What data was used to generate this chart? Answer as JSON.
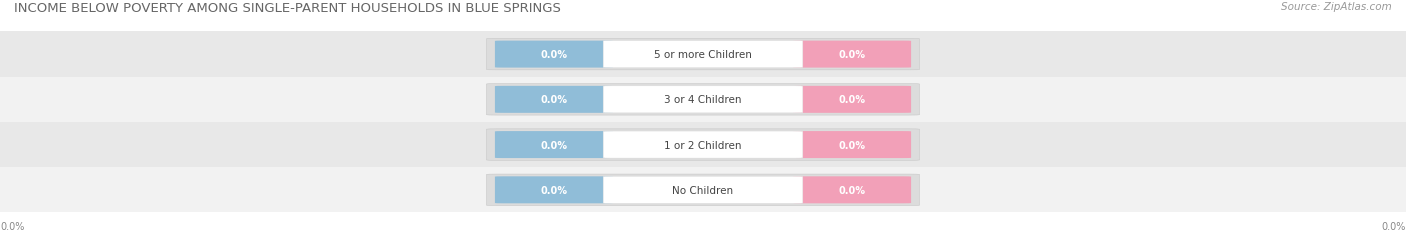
{
  "title": "INCOME BELOW POVERTY AMONG SINGLE-PARENT HOUSEHOLDS IN BLUE SPRINGS",
  "source": "Source: ZipAtlas.com",
  "categories": [
    "No Children",
    "1 or 2 Children",
    "3 or 4 Children",
    "5 or more Children"
  ],
  "father_values": [
    0.0,
    0.0,
    0.0,
    0.0
  ],
  "mother_values": [
    0.0,
    0.0,
    0.0,
    0.0
  ],
  "father_color": "#90BDD8",
  "mother_color": "#F2A0B8",
  "row_bg_light": "#F2F2F2",
  "row_bg_dark": "#E8E8E8",
  "bar_bg_color": "#E4E4E4",
  "title_fontsize": 9.5,
  "source_fontsize": 7.5,
  "value_fontsize": 7,
  "category_fontsize": 7.5,
  "axis_value": "0.0%"
}
